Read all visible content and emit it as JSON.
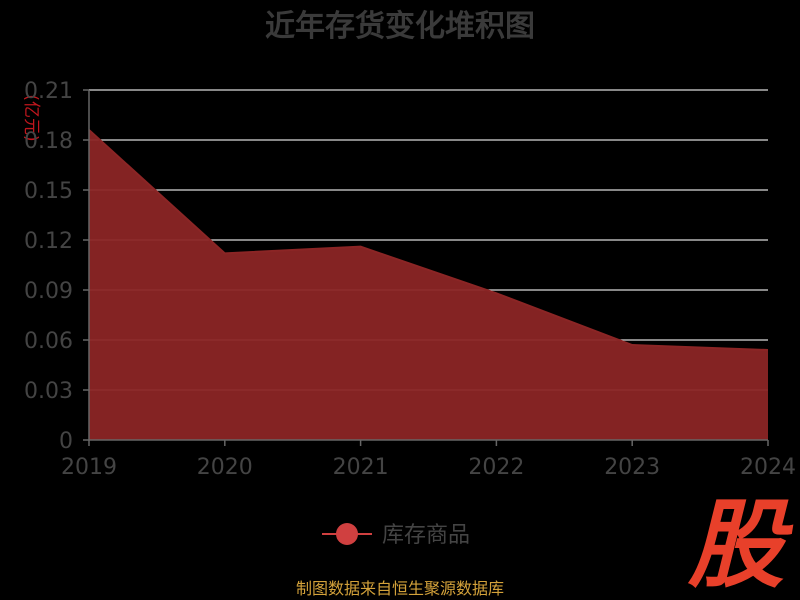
{
  "chart_data": {
    "type": "area",
    "title": "近年存货变化堆积图",
    "unit_label": "(亿元)",
    "categories": [
      "2019",
      "2020",
      "2021",
      "2022",
      "2023",
      "2024"
    ],
    "series": [
      {
        "name": "库存商品",
        "values": [
          0.186,
          0.112,
          0.116,
          0.088,
          0.057,
          0.054
        ]
      }
    ],
    "ylim": [
      0,
      0.21
    ],
    "yticks": [
      "0",
      "0.03",
      "0.06",
      "0.09",
      "0.12",
      "0.15",
      "0.18",
      "0.21"
    ],
    "grid": true,
    "legend_position": "bottom"
  },
  "footer": {
    "source": "制图数据来自恒生聚源数据库"
  },
  "logo": {
    "text": "股"
  },
  "colors": {
    "area_fill": "#8b2525",
    "line": "#8b2525",
    "legend_marker": "#d04040",
    "grid": "#d9d9d9",
    "axis": "#666666"
  }
}
